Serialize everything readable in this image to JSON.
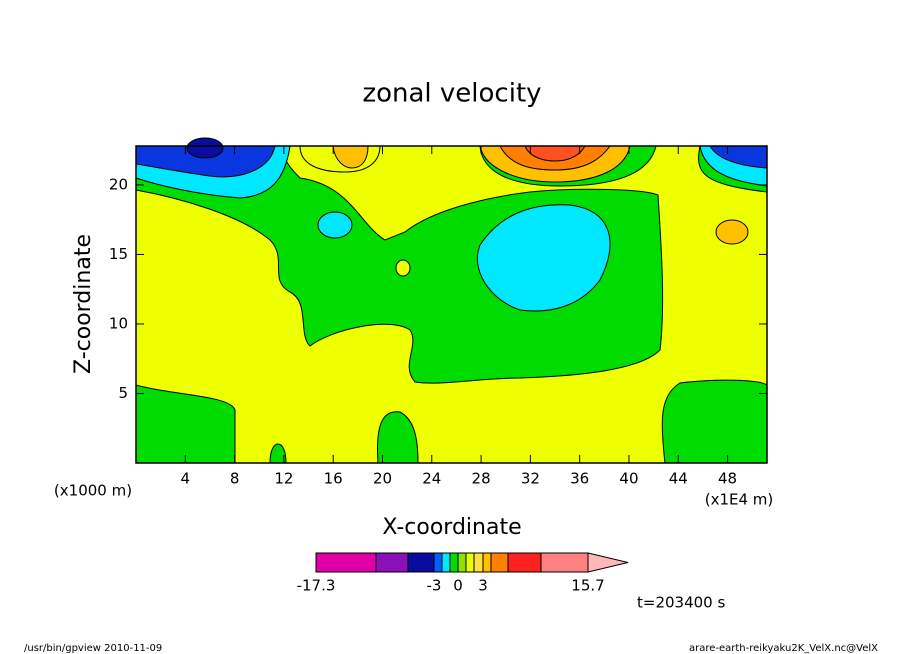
{
  "chart_data": {
    "type": "contour",
    "title": "zonal velocity",
    "xlabel": "X-coordinate",
    "ylabel": "Z-coordinate",
    "x_unit_label": "(x1000 m)",
    "x_scale_label": "(x1E4 m)",
    "xlim": [
      0,
      51.2
    ],
    "ylim": [
      0,
      22.8
    ],
    "xticks": [
      4,
      8,
      12,
      16,
      20,
      24,
      28,
      32,
      36,
      40,
      44,
      48
    ],
    "yticks": [
      5,
      10,
      15,
      20
    ],
    "colorbar": {
      "levels": [
        -17.3,
        -11,
        -7,
        -3,
        -2,
        -1,
        0,
        1,
        2,
        3,
        4,
        6,
        10,
        15.7
      ],
      "colors": [
        "#e000a8",
        "#8a10b8",
        "#0a0ca0",
        "#0060ff",
        "#00e8ff",
        "#00dc00",
        "#90e000",
        "#e8ff00",
        "#ffe040",
        "#ffc000",
        "#ff8000",
        "#ff2020",
        "#ff8080"
      ],
      "ticks": [
        -17.3,
        -3,
        0,
        3,
        15.7
      ]
    },
    "time_label": "t=203400 s",
    "footer_left": "/usr/bin/gpview  2010-11-09",
    "footer_right": "arare-earth-reikyaku2K_VelX.nc@VelX"
  }
}
